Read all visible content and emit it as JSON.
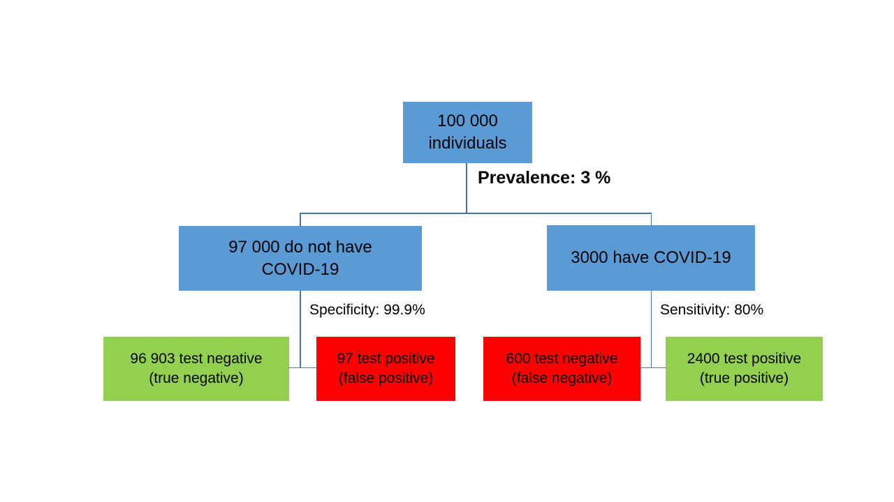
{
  "diagram": {
    "nodes": {
      "population": {
        "line1": "100 000",
        "line2": "individuals",
        "color": "#5B9BD5"
      },
      "no_covid": {
        "line1": "97 000 do not have",
        "line2": "COVID-19",
        "color": "#5B9BD5"
      },
      "have_covid": {
        "line1": "3000 have COVID-19",
        "color": "#5B9BD5"
      },
      "true_negative": {
        "line1": "96 903 test negative",
        "line2": "(true negative)",
        "color": "#92D050"
      },
      "false_positive": {
        "line1": "97 test positive",
        "line2": "(false positive)",
        "color": "#FF0000"
      },
      "false_negative": {
        "line1": "600 test negative",
        "line2": "(false negative)",
        "color": "#FF0000"
      },
      "true_positive": {
        "line1": "2400 test positive",
        "line2": "(true positive)",
        "color": "#92D050"
      }
    },
    "edge_labels": {
      "prevalence": "Prevalence: 3 %",
      "specificity": "Specificity: 99.9%",
      "sensitivity": "Sensitivity: 80%"
    },
    "colors": {
      "node_blue": "#5B9BD5",
      "node_green": "#92D050",
      "node_red": "#FF0000",
      "connector": "#4677A8",
      "text": "#000000",
      "background": "#FFFFFF"
    }
  }
}
